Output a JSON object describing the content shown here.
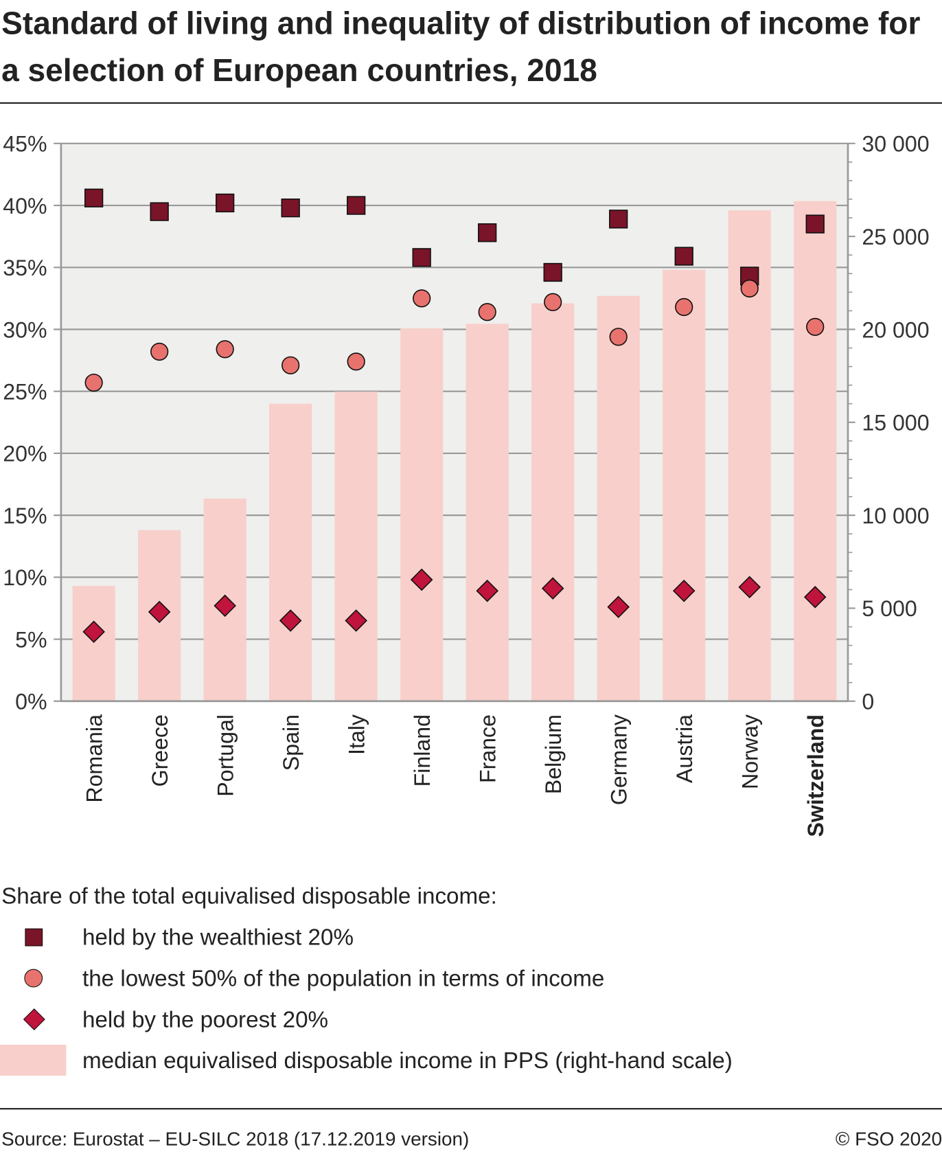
{
  "title": "Standard of living and inequality of distribution of income for a selection of European countries, 2018",
  "legend": {
    "title": "Share of the total equivalised disposable income:",
    "items": [
      {
        "label": "held by the wealthiest 20%",
        "color": "#7a1428"
      },
      {
        "label": "the lowest 50% of the population in terms of income",
        "color": "#e8736e"
      },
      {
        "label": "held by the poorest 20%",
        "color": "#c0143c"
      },
      {
        "label": "median equivalised disposable income in PPS (right-hand scale)",
        "color": "#f8cfca"
      }
    ]
  },
  "footer": {
    "source": "Source: Eurostat – EU-SILC 2018 (17.12.2019 version)",
    "copyright": "© FSO 2020"
  },
  "chart_data": {
    "type": "bar",
    "categories": [
      "Romania",
      "Greece",
      "Portugal",
      "Spain",
      "Italy",
      "Finland",
      "France",
      "Belgium",
      "Germany",
      "Austria",
      "Norway",
      "Switzerland"
    ],
    "highlight": "Switzerland",
    "left_axis": {
      "ylim": [
        0,
        45
      ],
      "ticks": [
        "0%",
        "5%",
        "10%",
        "15%",
        "20%",
        "25%",
        "30%",
        "35%",
        "40%",
        "45%"
      ]
    },
    "right_axis": {
      "ylim": [
        0,
        30000
      ],
      "ticks": [
        "0",
        "5 000",
        "10 000",
        "15 000",
        "20 000",
        "25 000",
        "30 000"
      ]
    },
    "grid": true,
    "series": [
      {
        "name": "median equivalised disposable income in PPS (right-hand scale)",
        "kind": "bar",
        "axis": "right",
        "values": [
          6200,
          9200,
          10900,
          16000,
          16650,
          20050,
          20300,
          21400,
          21800,
          23200,
          26400,
          26900
        ]
      },
      {
        "name": "held by the wealthiest 20%",
        "kind": "square",
        "axis": "left",
        "values": [
          40.6,
          39.5,
          40.2,
          39.8,
          40.0,
          35.8,
          37.8,
          34.6,
          38.9,
          35.9,
          34.3,
          38.5
        ]
      },
      {
        "name": "the lowest 50% of the population in terms of income",
        "kind": "circle",
        "axis": "left",
        "values": [
          25.7,
          28.2,
          28.4,
          27.1,
          27.4,
          32.5,
          31.4,
          32.2,
          29.4,
          31.8,
          33.3,
          30.2
        ]
      },
      {
        "name": "held by the poorest 20%",
        "kind": "diamond",
        "axis": "left",
        "values": [
          5.6,
          7.2,
          7.7,
          6.5,
          6.5,
          9.8,
          8.9,
          9.1,
          7.6,
          8.9,
          9.2,
          8.4
        ]
      }
    ]
  }
}
